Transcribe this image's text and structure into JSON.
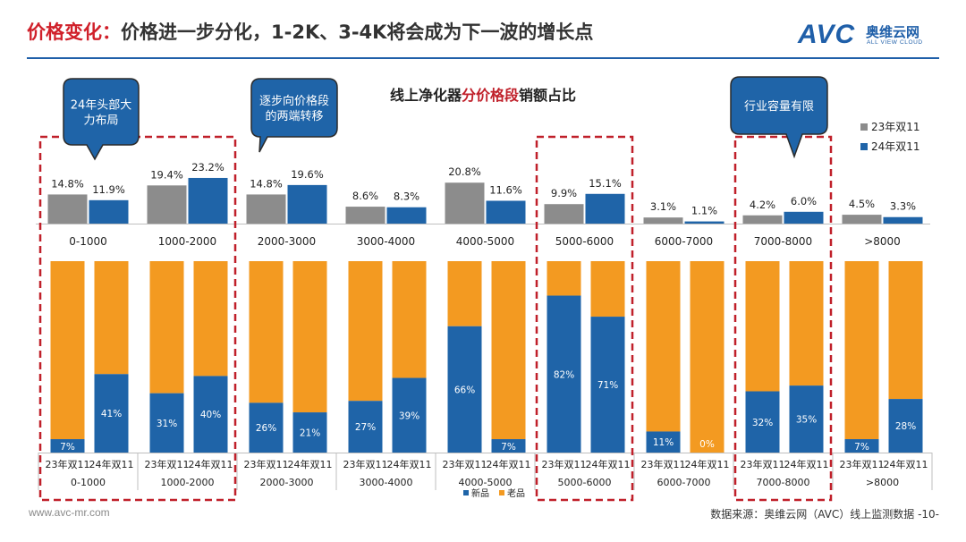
{
  "header": {
    "title_accent": "价格变化：",
    "title_rest": "价格进一步分化，1-2K、3-4K将会成为下一波的增长点"
  },
  "logo": {
    "brand": "AVC",
    "cn": "奥维云网",
    "en": "ALL VIEW CLOUD"
  },
  "footer": {
    "website": "www.avc-mr.com",
    "source": "数据来源：奥维云网（AVC）线上监测数据 -10-"
  },
  "colors": {
    "gray": "#8c8c8c",
    "blue": "#1f64a8",
    "orange": "#f39a21",
    "red": "#c0202a"
  },
  "callouts": [
    {
      "text_lines": [
        "24年头部大",
        "力布局"
      ]
    },
    {
      "text_lines": [
        "逐步向价格段",
        "的两端转移"
      ]
    },
    {
      "text_lines": [
        "行业容量有限"
      ]
    }
  ],
  "chart_data": [
    {
      "type": "bar",
      "title_normal_1": "线上净化器",
      "title_highlight": "分价格段",
      "title_normal_2": "销额占比",
      "categories": [
        "0-1000",
        "1000-2000",
        "2000-3000",
        "3000-4000",
        "4000-5000",
        "5000-6000",
        "6000-7000",
        "7000-8000",
        ">8000"
      ],
      "series": [
        {
          "name": "23年双11",
          "values": [
            14.8,
            19.4,
            14.8,
            8.6,
            20.8,
            9.9,
            3.1,
            4.2,
            4.5
          ],
          "labels": [
            "14.8%",
            "19.4%",
            "14.8%",
            "8.6%",
            "20.8%",
            "9.9%",
            "3.1%",
            "4.2%",
            "4.5%"
          ]
        },
        {
          "name": "24年双11",
          "values": [
            11.9,
            23.2,
            19.6,
            8.3,
            11.6,
            15.1,
            1.1,
            6.0,
            3.3
          ],
          "labels": [
            "11.9%",
            "23.2%",
            "19.6%",
            "8.3%",
            "11.6%",
            "15.1%",
            "1.1%",
            "6.0%",
            "3.3%"
          ]
        }
      ],
      "legend_position": "top-right"
    },
    {
      "type": "bar",
      "stacked": true,
      "percent": true,
      "categories": [
        "0-1000",
        "1000-2000",
        "2000-3000",
        "3000-4000",
        "4000-5000",
        "5000-6000",
        "6000-7000",
        "7000-8000",
        ">8000"
      ],
      "sub_categories": [
        "23年双11",
        "24年双11"
      ],
      "series": [
        {
          "name": "新品",
          "values": [
            [
              7,
              41
            ],
            [
              31,
              40
            ],
            [
              26,
              21
            ],
            [
              27,
              39
            ],
            [
              66,
              7
            ],
            [
              82,
              71
            ],
            [
              11,
              0
            ],
            [
              32,
              35
            ],
            [
              7,
              28
            ]
          ],
          "labels": [
            [
              "7%",
              "41%"
            ],
            [
              "31%",
              "40%"
            ],
            [
              "26%",
              "21%"
            ],
            [
              "27%",
              "39%"
            ],
            [
              "66%",
              "7%"
            ],
            [
              "82%",
              "71%"
            ],
            [
              "11%",
              "0%"
            ],
            [
              "32%",
              "35%"
            ],
            [
              "7%",
              "28%"
            ]
          ]
        },
        {
          "name": "老品",
          "values": [
            [
              93,
              59
            ],
            [
              69,
              60
            ],
            [
              74,
              79
            ],
            [
              73,
              61
            ],
            [
              34,
              93
            ],
            [
              18,
              29
            ],
            [
              89,
              100
            ],
            [
              68,
              65
            ],
            [
              93,
              72
            ]
          ]
        }
      ],
      "legend_position": "bottom"
    }
  ]
}
